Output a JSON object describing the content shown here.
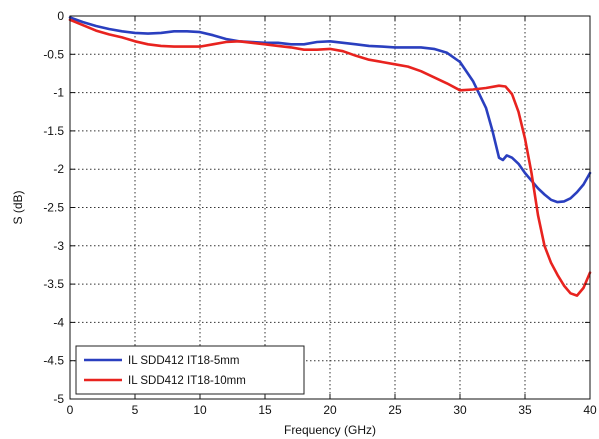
{
  "chart_data": {
    "type": "line",
    "title": "",
    "xlabel": "Frequency (GHz)",
    "ylabel": "S (dB)",
    "xlim": [
      0,
      40
    ],
    "ylim": [
      -5,
      0
    ],
    "xticks": [
      0,
      5,
      10,
      15,
      20,
      25,
      30,
      35,
      40
    ],
    "yticks": [
      0,
      -0.5,
      -1,
      -1.5,
      -2,
      -2.5,
      -3,
      -3.5,
      -4,
      -4.5,
      -5
    ],
    "xtick_labels": [
      "0",
      "5",
      "10",
      "15",
      "20",
      "25",
      "30",
      "35",
      "40"
    ],
    "ytick_labels": [
      "0",
      "-0.5",
      "-1",
      "-1.5",
      "-2",
      "-2.5",
      "-3",
      "-3.5",
      "-4",
      "-4.5",
      "-5"
    ],
    "grid": true,
    "grid_style": "dotted",
    "legend_position": "bottom-left",
    "series": [
      {
        "name": "IL SDD412 IT18-5mm",
        "color": "#2a3fbf",
        "x": [
          0,
          1,
          2,
          3,
          4,
          5,
          6,
          7,
          8,
          9,
          10,
          11,
          12,
          13,
          14,
          15,
          16,
          17,
          18,
          19,
          20,
          21,
          22,
          23,
          24,
          25,
          26,
          27,
          28,
          29,
          30,
          31,
          32,
          32.5,
          33,
          33.3,
          33.6,
          34,
          34.5,
          35,
          35.5,
          36,
          36.5,
          37,
          37.5,
          38,
          38.5,
          39,
          39.5,
          40
        ],
        "y": [
          -0.02,
          -0.08,
          -0.13,
          -0.17,
          -0.2,
          -0.22,
          -0.23,
          -0.22,
          -0.2,
          -0.2,
          -0.21,
          -0.25,
          -0.3,
          -0.33,
          -0.34,
          -0.35,
          -0.35,
          -0.37,
          -0.37,
          -0.34,
          -0.33,
          -0.35,
          -0.37,
          -0.39,
          -0.4,
          -0.41,
          -0.41,
          -0.41,
          -0.43,
          -0.48,
          -0.6,
          -0.85,
          -1.2,
          -1.5,
          -1.85,
          -1.88,
          -1.82,
          -1.85,
          -1.93,
          -2.05,
          -2.15,
          -2.25,
          -2.33,
          -2.4,
          -2.43,
          -2.42,
          -2.38,
          -2.3,
          -2.2,
          -2.05
        ]
      },
      {
        "name": "IL SDD412 IT18-10mm",
        "color": "#e8231f",
        "x": [
          0,
          1,
          2,
          3,
          4,
          5,
          6,
          7,
          8,
          9,
          10,
          11,
          12,
          13,
          14,
          15,
          16,
          17,
          18,
          19,
          20,
          21,
          22,
          23,
          24,
          25,
          26,
          27,
          28,
          29,
          30,
          31,
          32,
          33,
          33.5,
          34,
          34.5,
          35,
          35.5,
          36,
          36.5,
          37,
          37.5,
          38,
          38.5,
          39,
          39.5,
          40
        ],
        "y": [
          -0.05,
          -0.12,
          -0.19,
          -0.24,
          -0.28,
          -0.33,
          -0.37,
          -0.39,
          -0.4,
          -0.4,
          -0.4,
          -0.37,
          -0.34,
          -0.33,
          -0.35,
          -0.37,
          -0.39,
          -0.41,
          -0.44,
          -0.44,
          -0.43,
          -0.46,
          -0.52,
          -0.57,
          -0.6,
          -0.63,
          -0.66,
          -0.72,
          -0.8,
          -0.88,
          -0.97,
          -0.96,
          -0.94,
          -0.91,
          -0.92,
          -1.02,
          -1.25,
          -1.6,
          -2.05,
          -2.6,
          -3.0,
          -3.22,
          -3.38,
          -3.52,
          -3.62,
          -3.65,
          -3.55,
          -3.35
        ]
      }
    ]
  }
}
